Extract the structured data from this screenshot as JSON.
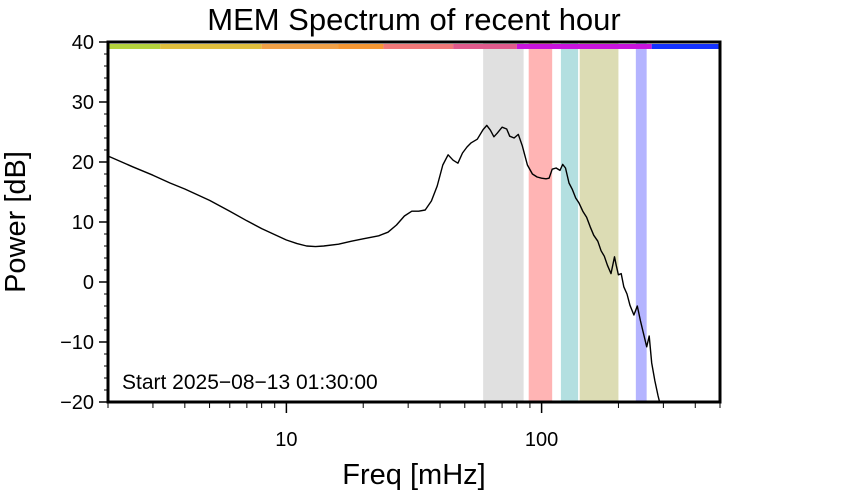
{
  "chart_data": {
    "type": "line",
    "title": "MEM Spectrum of recent hour",
    "xlabel": "Freq [mHz]",
    "ylabel": "Power [dB]",
    "xscale": "log",
    "xlim": [
      2.0,
      500
    ],
    "ylim": [
      -20,
      40
    ],
    "grid": false,
    "x_tick_labels": [
      {
        "value": 10,
        "label": "10"
      },
      {
        "value": 100,
        "label": "100"
      }
    ],
    "y_tick_labels": [
      {
        "value": 40,
        "label": "40"
      },
      {
        "value": 30,
        "label": "30"
      },
      {
        "value": 20,
        "label": "20"
      },
      {
        "value": 10,
        "label": "10"
      },
      {
        "value": 0,
        "label": "0"
      },
      {
        "value": -10,
        "label": "−10"
      },
      {
        "value": -20,
        "label": "−20"
      }
    ],
    "annotation": "Start 2025−08−13 01:30:00",
    "series": [
      {
        "color": "#000000",
        "points": [
          [
            2.0,
            21.0
          ],
          [
            2.5,
            19.2
          ],
          [
            3.0,
            17.8
          ],
          [
            3.5,
            16.5
          ],
          [
            4.0,
            15.5
          ],
          [
            5.0,
            13.6
          ],
          [
            6.0,
            11.8
          ],
          [
            7.0,
            10.2
          ],
          [
            8.0,
            8.9
          ],
          [
            9.0,
            7.9
          ],
          [
            10.0,
            7.0
          ],
          [
            11.0,
            6.4
          ],
          [
            12.0,
            6.0
          ],
          [
            13.0,
            5.9
          ],
          [
            14.0,
            6.0
          ],
          [
            16.0,
            6.3
          ],
          [
            18.0,
            6.8
          ],
          [
            20.0,
            7.2
          ],
          [
            23.0,
            7.7
          ],
          [
            25.0,
            8.3
          ],
          [
            27.0,
            9.5
          ],
          [
            29.0,
            11.0
          ],
          [
            31.0,
            11.8
          ],
          [
            33.0,
            11.8
          ],
          [
            35.0,
            12.0
          ],
          [
            37.0,
            13.5
          ],
          [
            39.0,
            16.0
          ],
          [
            41.0,
            19.5
          ],
          [
            43.0,
            21.2
          ],
          [
            45.0,
            20.3
          ],
          [
            47.0,
            19.8
          ],
          [
            49.0,
            21.5
          ],
          [
            51.0,
            22.5
          ],
          [
            53.0,
            23.2
          ],
          [
            56.0,
            23.8
          ],
          [
            59.0,
            25.4
          ],
          [
            61.0,
            26.1
          ],
          [
            63.0,
            25.3
          ],
          [
            65.0,
            24.2
          ],
          [
            67.0,
            24.8
          ],
          [
            70.0,
            25.8
          ],
          [
            73.0,
            25.5
          ],
          [
            75.0,
            24.3
          ],
          [
            78.0,
            24.0
          ],
          [
            81.0,
            24.6
          ],
          [
            84.0,
            22.7
          ],
          [
            88.0,
            19.5
          ],
          [
            92.0,
            18.0
          ],
          [
            96.0,
            17.5
          ],
          [
            100.0,
            17.3
          ],
          [
            104.0,
            17.2
          ],
          [
            107.0,
            17.3
          ],
          [
            110.0,
            18.8
          ],
          [
            114.0,
            19.0
          ],
          [
            118.0,
            18.6
          ],
          [
            121.0,
            19.6
          ],
          [
            124.0,
            19.0
          ],
          [
            128.0,
            16.5
          ],
          [
            132.0,
            15.4
          ],
          [
            136.0,
            14.0
          ],
          [
            140.0,
            13.2
          ],
          [
            145.0,
            11.8
          ],
          [
            150.0,
            10.8
          ],
          [
            155.0,
            9.2
          ],
          [
            160.0,
            7.8
          ],
          [
            166.0,
            6.8
          ],
          [
            171.0,
            5.2
          ],
          [
            176.0,
            4.3
          ],
          [
            181.0,
            2.8
          ],
          [
            187.0,
            1.4
          ],
          [
            193.0,
            4.2
          ],
          [
            196.0,
            2.8
          ],
          [
            200.0,
            1.2
          ],
          [
            205.0,
            1.4
          ],
          [
            210.0,
            -0.8
          ],
          [
            216.0,
            -2.0
          ],
          [
            222.0,
            -3.9
          ],
          [
            230.0,
            -5.5
          ],
          [
            237.0,
            -4.0
          ],
          [
            244.0,
            -6.5
          ],
          [
            252.0,
            -9.0
          ],
          [
            258.0,
            -10.8
          ],
          [
            264.0,
            -9.0
          ],
          [
            270.0,
            -13.5
          ],
          [
            278.0,
            -16.5
          ],
          [
            286.0,
            -19.0
          ],
          [
            290.0,
            -20.0
          ]
        ]
      }
    ],
    "bands": [
      {
        "from": 59.0,
        "to": 85.0,
        "color": "#e0e0e0"
      },
      {
        "from": 89.0,
        "to": 110.0,
        "color": "#ffb4b4"
      },
      {
        "from": 119.0,
        "to": 139.0,
        "color": "#b3dfe0"
      },
      {
        "from": 141.0,
        "to": 200.0,
        "color": "#dcdcb4"
      },
      {
        "from": 234.0,
        "to": 258.0,
        "color": "#b4b4ff"
      }
    ],
    "top_color_bar": [
      {
        "from": 2.0,
        "to": 3.2,
        "color": "#b4d23c"
      },
      {
        "from": 3.2,
        "to": 8.0,
        "color": "#e1be3c"
      },
      {
        "from": 8.0,
        "to": 16.0,
        "color": "#f0a046"
      },
      {
        "from": 16.0,
        "to": 24.0,
        "color": "#f59632"
      },
      {
        "from": 24.0,
        "to": 45.0,
        "color": "#f07878"
      },
      {
        "from": 45.0,
        "to": 80.0,
        "color": "#e05a8c"
      },
      {
        "from": 80.0,
        "to": 270.0,
        "color": "#c814dc"
      },
      {
        "from": 270.0,
        "to": 500.0,
        "color": "#1432ff"
      }
    ]
  }
}
